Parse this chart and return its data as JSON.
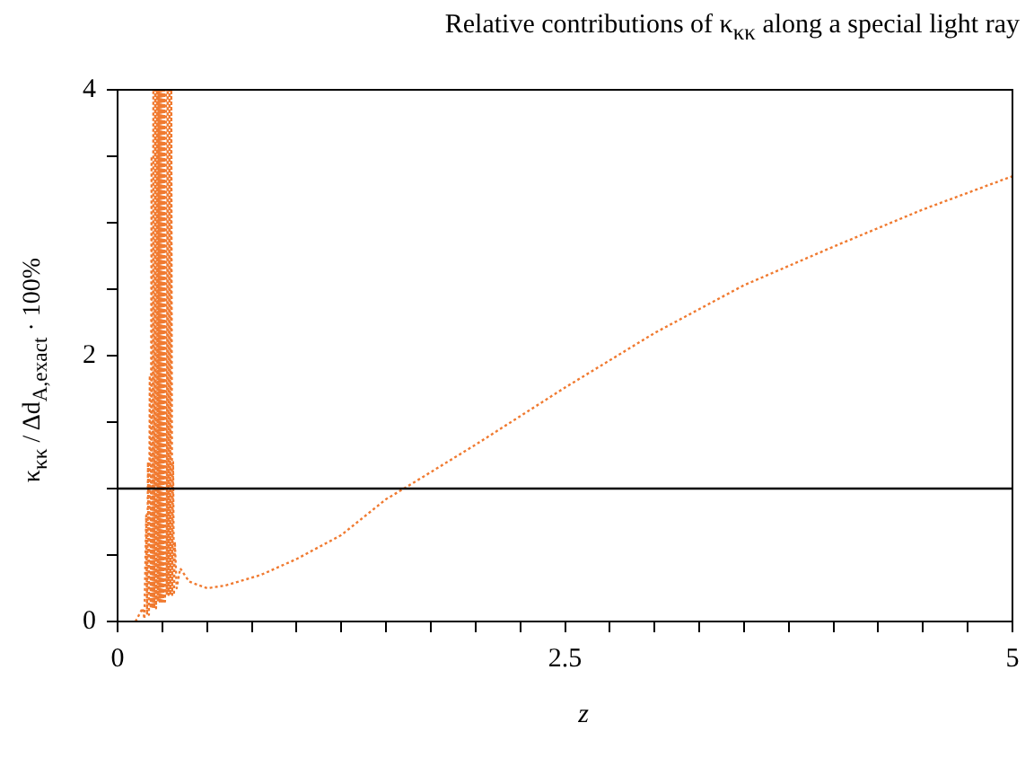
{
  "chart_data": {
    "type": "line",
    "title": "Relative contributions of κ$_{κκ}$ along a special light ray",
    "xlabel": "z",
    "ylabel": "κ$_{κκ}$ / Δd$_{A,exact}$ · 100%",
    "x": [
      0.1,
      0.12,
      0.14,
      0.15,
      0.16,
      0.165,
      0.17,
      0.175,
      0.18,
      0.185,
      0.19,
      0.195,
      0.2,
      0.205,
      0.21,
      0.215,
      0.22,
      0.225,
      0.23,
      0.235,
      0.24,
      0.245,
      0.25,
      0.255,
      0.26,
      0.265,
      0.27,
      0.275,
      0.28,
      0.285,
      0.29,
      0.295,
      0.3,
      0.305,
      0.31,
      0.315,
      0.32,
      0.33,
      0.35,
      0.4,
      0.5,
      0.6,
      0.8,
      1.0,
      1.25,
      1.5,
      1.6,
      2.0,
      2.5,
      3.0,
      3.5,
      4.0,
      4.5,
      5.0
    ],
    "series": [
      {
        "color": "#f07a30",
        "values": [
          0,
          0.05,
          0.1,
          0.02,
          0.8,
          0.05,
          1.2,
          0.05,
          1.85,
          0.1,
          3.5,
          0.1,
          4,
          0.1,
          4,
          0.1,
          4,
          0.15,
          4,
          0.15,
          4,
          0.15,
          4,
          0.15,
          4,
          0.15,
          4,
          0.2,
          4,
          0.2,
          4,
          0.2,
          4,
          0.2,
          1.2,
          0.2,
          0.6,
          0.25,
          0.4,
          0.3,
          0.25,
          0.27,
          0.35,
          0.47,
          0.65,
          0.92,
          1.0,
          1.33,
          1.76,
          2.17,
          2.53,
          2.82,
          3.1,
          3.35
        ]
      }
    ],
    "line_style": "dotted",
    "marker": "none",
    "legend": false,
    "xlim": [
      0,
      5
    ],
    "ylim": [
      0,
      4
    ],
    "xticks": [
      0,
      {
        "value": 0.25,
        "label": null
      },
      {
        "value": 0.5,
        "label": null
      },
      {
        "value": 0.75,
        "label": null
      },
      {
        "value": 1,
        "label": null
      },
      {
        "value": 1.25,
        "label": null
      },
      {
        "value": 1.5,
        "label": null
      },
      {
        "value": 1.75,
        "label": null
      },
      {
        "value": 2,
        "label": null
      },
      {
        "value": 2.25,
        "label": null
      },
      2.5,
      {
        "value": 2.75,
        "label": null
      },
      {
        "value": 3,
        "label": null
      },
      {
        "value": 3.25,
        "label": null
      },
      {
        "value": 3.5,
        "label": null
      },
      {
        "value": 3.75,
        "label": null
      },
      {
        "value": 4,
        "label": null
      },
      {
        "value": 4.25,
        "label": null
      },
      {
        "value": 4.5,
        "label": null
      },
      {
        "value": 4.75,
        "label": null
      },
      5
    ],
    "yticks": [
      0,
      {
        "value": 0.5,
        "label": null
      },
      {
        "value": 1,
        "label": null
      },
      {
        "value": 1.5,
        "label": null
      },
      2,
      {
        "value": 2.5,
        "label": null
      },
      {
        "value": 3,
        "label": null
      },
      {
        "value": 3.5,
        "label": null
      },
      4
    ],
    "ref_lines": [
      {
        "axis": "y",
        "value": 1,
        "color": "#000000"
      }
    ]
  }
}
